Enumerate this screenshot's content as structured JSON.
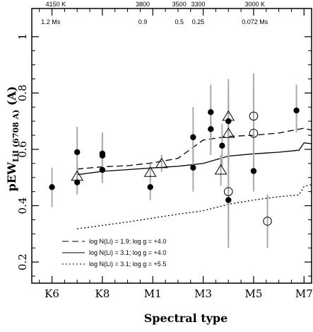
{
  "chart_data": {
    "type": "scatter",
    "xlabel": "Spectral type",
    "ylabel_main": "pEW",
    "ylabel_sub": "LiI (6708 A)",
    "ylabel_unit": "(A)",
    "x_ticks": [
      {
        "label": "K6",
        "x": 0
      },
      {
        "label": "K8",
        "x": 2
      },
      {
        "label": "M1",
        "x": 4
      },
      {
        "label": "M3",
        "x": 6
      },
      {
        "label": "M5",
        "x": 8
      },
      {
        "label": "M7",
        "x": 10
      }
    ],
    "xlim": [
      -0.8,
      10.3
    ],
    "ylim": [
      0.125,
      1.1
    ],
    "y_ticks": [
      0.2,
      0.4,
      0.6,
      0.8,
      1.0
    ],
    "y_tick_labels": [
      "0.2",
      "0.4",
      "0.6",
      "0.8",
      "1"
    ],
    "top_temperature_labels": [
      {
        "text": "4150 K",
        "x": 0.15
      },
      {
        "text": "3800",
        "x": 3.6
      },
      {
        "text": "3500",
        "x": 5.05
      },
      {
        "text": "3300",
        "x": 5.8
      },
      {
        "text": "3000 K",
        "x": 8.05
      }
    ],
    "top_mass_labels": [
      {
        "text": "1.2 Ms",
        "x": -0.05
      },
      {
        "text": "0.9",
        "x": 3.6
      },
      {
        "text": "0.5",
        "x": 5.05
      },
      {
        "text": "0.25",
        "x": 5.8
      },
      {
        "text": "0.072 Ms",
        "x": 8.05
      }
    ],
    "series": [
      {
        "marker": "filled-circle",
        "points": [
          {
            "x": 0.0,
            "y": 0.466,
            "ylo": 0.395,
            "yhi": 0.535
          },
          {
            "x": 1.0,
            "y": 0.59,
            "ylo": 0.52,
            "yhi": 0.68
          },
          {
            "x": 1.0,
            "y": 0.483,
            "ylo": 0.44,
            "yhi": 0.53
          },
          {
            "x": 2.0,
            "y": 0.585,
            "ylo": 0.51,
            "yhi": 0.66
          },
          {
            "x": 2.0,
            "y": 0.578,
            "ylo": 0.5,
            "yhi": 0.65
          },
          {
            "x": 2.0,
            "y": 0.527,
            "ylo": 0.48,
            "yhi": 0.57
          },
          {
            "x": 3.9,
            "y": 0.466,
            "ylo": 0.42,
            "yhi": 0.51
          },
          {
            "x": 5.6,
            "y": 0.643,
            "ylo": 0.535,
            "yhi": 0.75
          },
          {
            "x": 5.6,
            "y": 0.535,
            "ylo": 0.45,
            "yhi": 0.62
          },
          {
            "x": 6.3,
            "y": 0.732,
            "ylo": 0.64,
            "yhi": 0.83
          },
          {
            "x": 6.3,
            "y": 0.672,
            "ylo": 0.58,
            "yhi": 0.76
          },
          {
            "x": 6.75,
            "y": 0.613,
            "ylo": 0.54,
            "yhi": 0.69
          },
          {
            "x": 7.0,
            "y": 0.7,
            "ylo": 0.6,
            "yhi": 0.8
          },
          {
            "x": 7.0,
            "y": 0.42,
            "ylo": 0.25,
            "yhi": 0.6
          },
          {
            "x": 8.0,
            "y": 0.523,
            "ylo": 0.45,
            "yhi": 0.61
          },
          {
            "x": 9.7,
            "y": 0.738,
            "ylo": 0.66,
            "yhi": 0.83
          }
        ]
      },
      {
        "marker": "open-circle",
        "points": [
          {
            "x": 7.0,
            "y": 0.45,
            "ylo": 0.3,
            "yhi": 0.6
          },
          {
            "x": 8.0,
            "y": 0.718,
            "ylo": 0.57,
            "yhi": 0.87
          },
          {
            "x": 8.0,
            "y": 0.657,
            "ylo": 0.5,
            "yhi": 0.81
          },
          {
            "x": 8.55,
            "y": 0.345,
            "ylo": 0.25,
            "yhi": 0.44
          }
        ]
      },
      {
        "marker": "open-triangle",
        "points": [
          {
            "x": 1.0,
            "y": 0.503,
            "ylo": 0.47,
            "yhi": 0.54
          },
          {
            "x": 3.9,
            "y": 0.517,
            "ylo": 0.49,
            "yhi": 0.55
          },
          {
            "x": 4.35,
            "y": 0.548,
            "ylo": 0.52,
            "yhi": 0.58
          },
          {
            "x": 6.7,
            "y": 0.525,
            "ylo": 0.47,
            "yhi": 0.58
          },
          {
            "x": 7.0,
            "y": 0.716,
            "ylo": 0.58,
            "yhi": 0.85
          },
          {
            "x": 7.0,
            "y": 0.655,
            "ylo": 0.55,
            "yhi": 0.76
          }
        ]
      },
      {
        "name": "log N(Li) = 3.1; log g = +4.0",
        "style": "solid",
        "points": [
          [
            1.0,
            0.51
          ],
          [
            2.0,
            0.522
          ],
          [
            3.0,
            0.528
          ],
          [
            4.0,
            0.534
          ],
          [
            5.0,
            0.54
          ],
          [
            6.0,
            0.55
          ],
          [
            7.0,
            0.576
          ],
          [
            8.0,
            0.584
          ],
          [
            9.0,
            0.59
          ],
          [
            9.8,
            0.597
          ],
          [
            10.0,
            0.623
          ],
          [
            10.3,
            0.62
          ]
        ]
      },
      {
        "name": "log N(Li) = 1.9; log g = +4.0",
        "style": "dashed",
        "points": [
          [
            1.0,
            0.53
          ],
          [
            2.0,
            0.538
          ],
          [
            3.0,
            0.542
          ],
          [
            4.0,
            0.552
          ],
          [
            5.0,
            0.568
          ],
          [
            6.0,
            0.633
          ],
          [
            7.0,
            0.646
          ],
          [
            8.0,
            0.65
          ],
          [
            9.0,
            0.658
          ],
          [
            10.0,
            0.675
          ],
          [
            10.3,
            0.668
          ]
        ]
      },
      {
        "name": "log N(Li) = 3.1; log g = +5.5",
        "style": "dotted",
        "points": [
          [
            1.0,
            0.318
          ],
          [
            2.0,
            0.33
          ],
          [
            3.0,
            0.342
          ],
          [
            4.0,
            0.356
          ],
          [
            5.0,
            0.37
          ],
          [
            6.0,
            0.382
          ],
          [
            7.0,
            0.405
          ],
          [
            8.0,
            0.42
          ],
          [
            9.0,
            0.432
          ],
          [
            9.8,
            0.438
          ],
          [
            10.0,
            0.468
          ],
          [
            10.3,
            0.475
          ]
        ]
      }
    ],
    "legend": {
      "placement": "bottom-left",
      "entries": [
        {
          "label": "log N(Li) = 1.9; log g = +4.0",
          "style": "dashed"
        },
        {
          "label": "log N(Li) = 3.1; log g = +4.0",
          "style": "solid"
        },
        {
          "label": "log N(Li) = 3.1; log g = +5.5",
          "style": "dotted"
        }
      ]
    }
  }
}
